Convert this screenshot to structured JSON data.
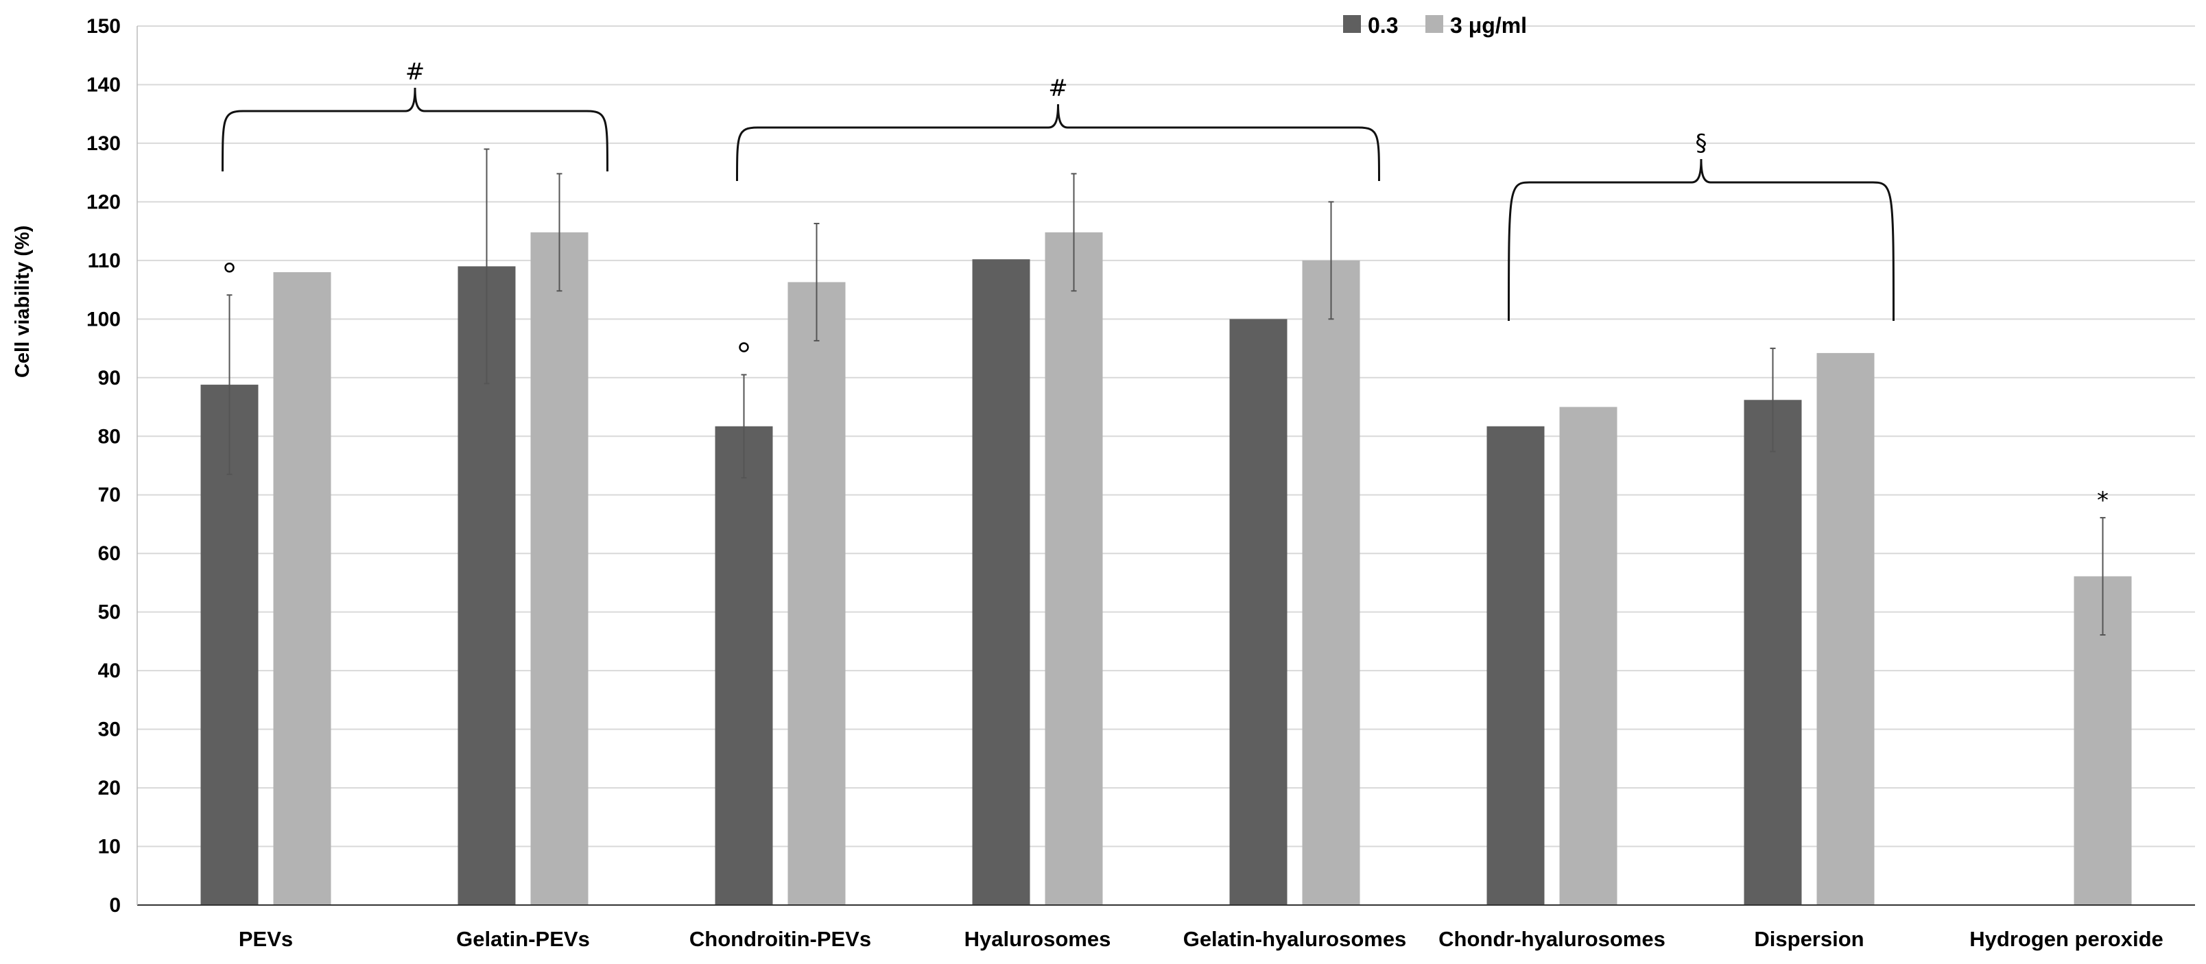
{
  "chart_data": {
    "type": "bar",
    "title": "",
    "xlabel": "",
    "ylabel": "Cell viability (%)",
    "ylim": [
      0,
      150
    ],
    "yticks": [
      0,
      10,
      20,
      30,
      40,
      50,
      60,
      70,
      80,
      90,
      100,
      110,
      120,
      130,
      140,
      150
    ],
    "grid": true,
    "legend_position": "top-center",
    "categories": [
      "PEVs",
      "Gelatin-PEVs",
      "Chondroitin-PEVs",
      "Hyalurosomes",
      "Gelatin-hyalurosomes",
      "Chondr-hyalurosomes",
      "Dispersion",
      "Hydrogen peroxide"
    ],
    "series": [
      {
        "name": "0.3",
        "color": "#5f5f5f",
        "values": [
          88.8,
          109,
          81.7,
          110.2,
          100,
          81.7,
          86.2,
          null
        ],
        "errors": [
          15.3,
          20,
          8.8,
          0,
          0,
          0,
          8.8,
          null
        ]
      },
      {
        "name": "3 μg/ml",
        "color": "#b3b3b3",
        "values": [
          108,
          114.8,
          106.3,
          114.8,
          110,
          85,
          94.2,
          56.1
        ],
        "errors": [
          0,
          10,
          10,
          10,
          10,
          0,
          0,
          10
        ]
      }
    ],
    "annotations": [
      {
        "text": "°",
        "category": "PEVs",
        "series": "0.3"
      },
      {
        "text": "°",
        "category": "Chondroitin-PEVs",
        "series": "0.3"
      },
      {
        "text": "*",
        "category": "Hydrogen peroxide",
        "series": "3 μg/ml"
      }
    ],
    "brackets": [
      {
        "symbol": "#",
        "from": "PEVs",
        "to": "Gelatin-PEVs"
      },
      {
        "symbol": "#",
        "from": "Chondroitin-PEVs",
        "to": "Gelatin-hyalurosomes"
      },
      {
        "symbol": "§",
        "from": "Chondr-hyalurosomes",
        "to": "Dispersion"
      }
    ]
  }
}
